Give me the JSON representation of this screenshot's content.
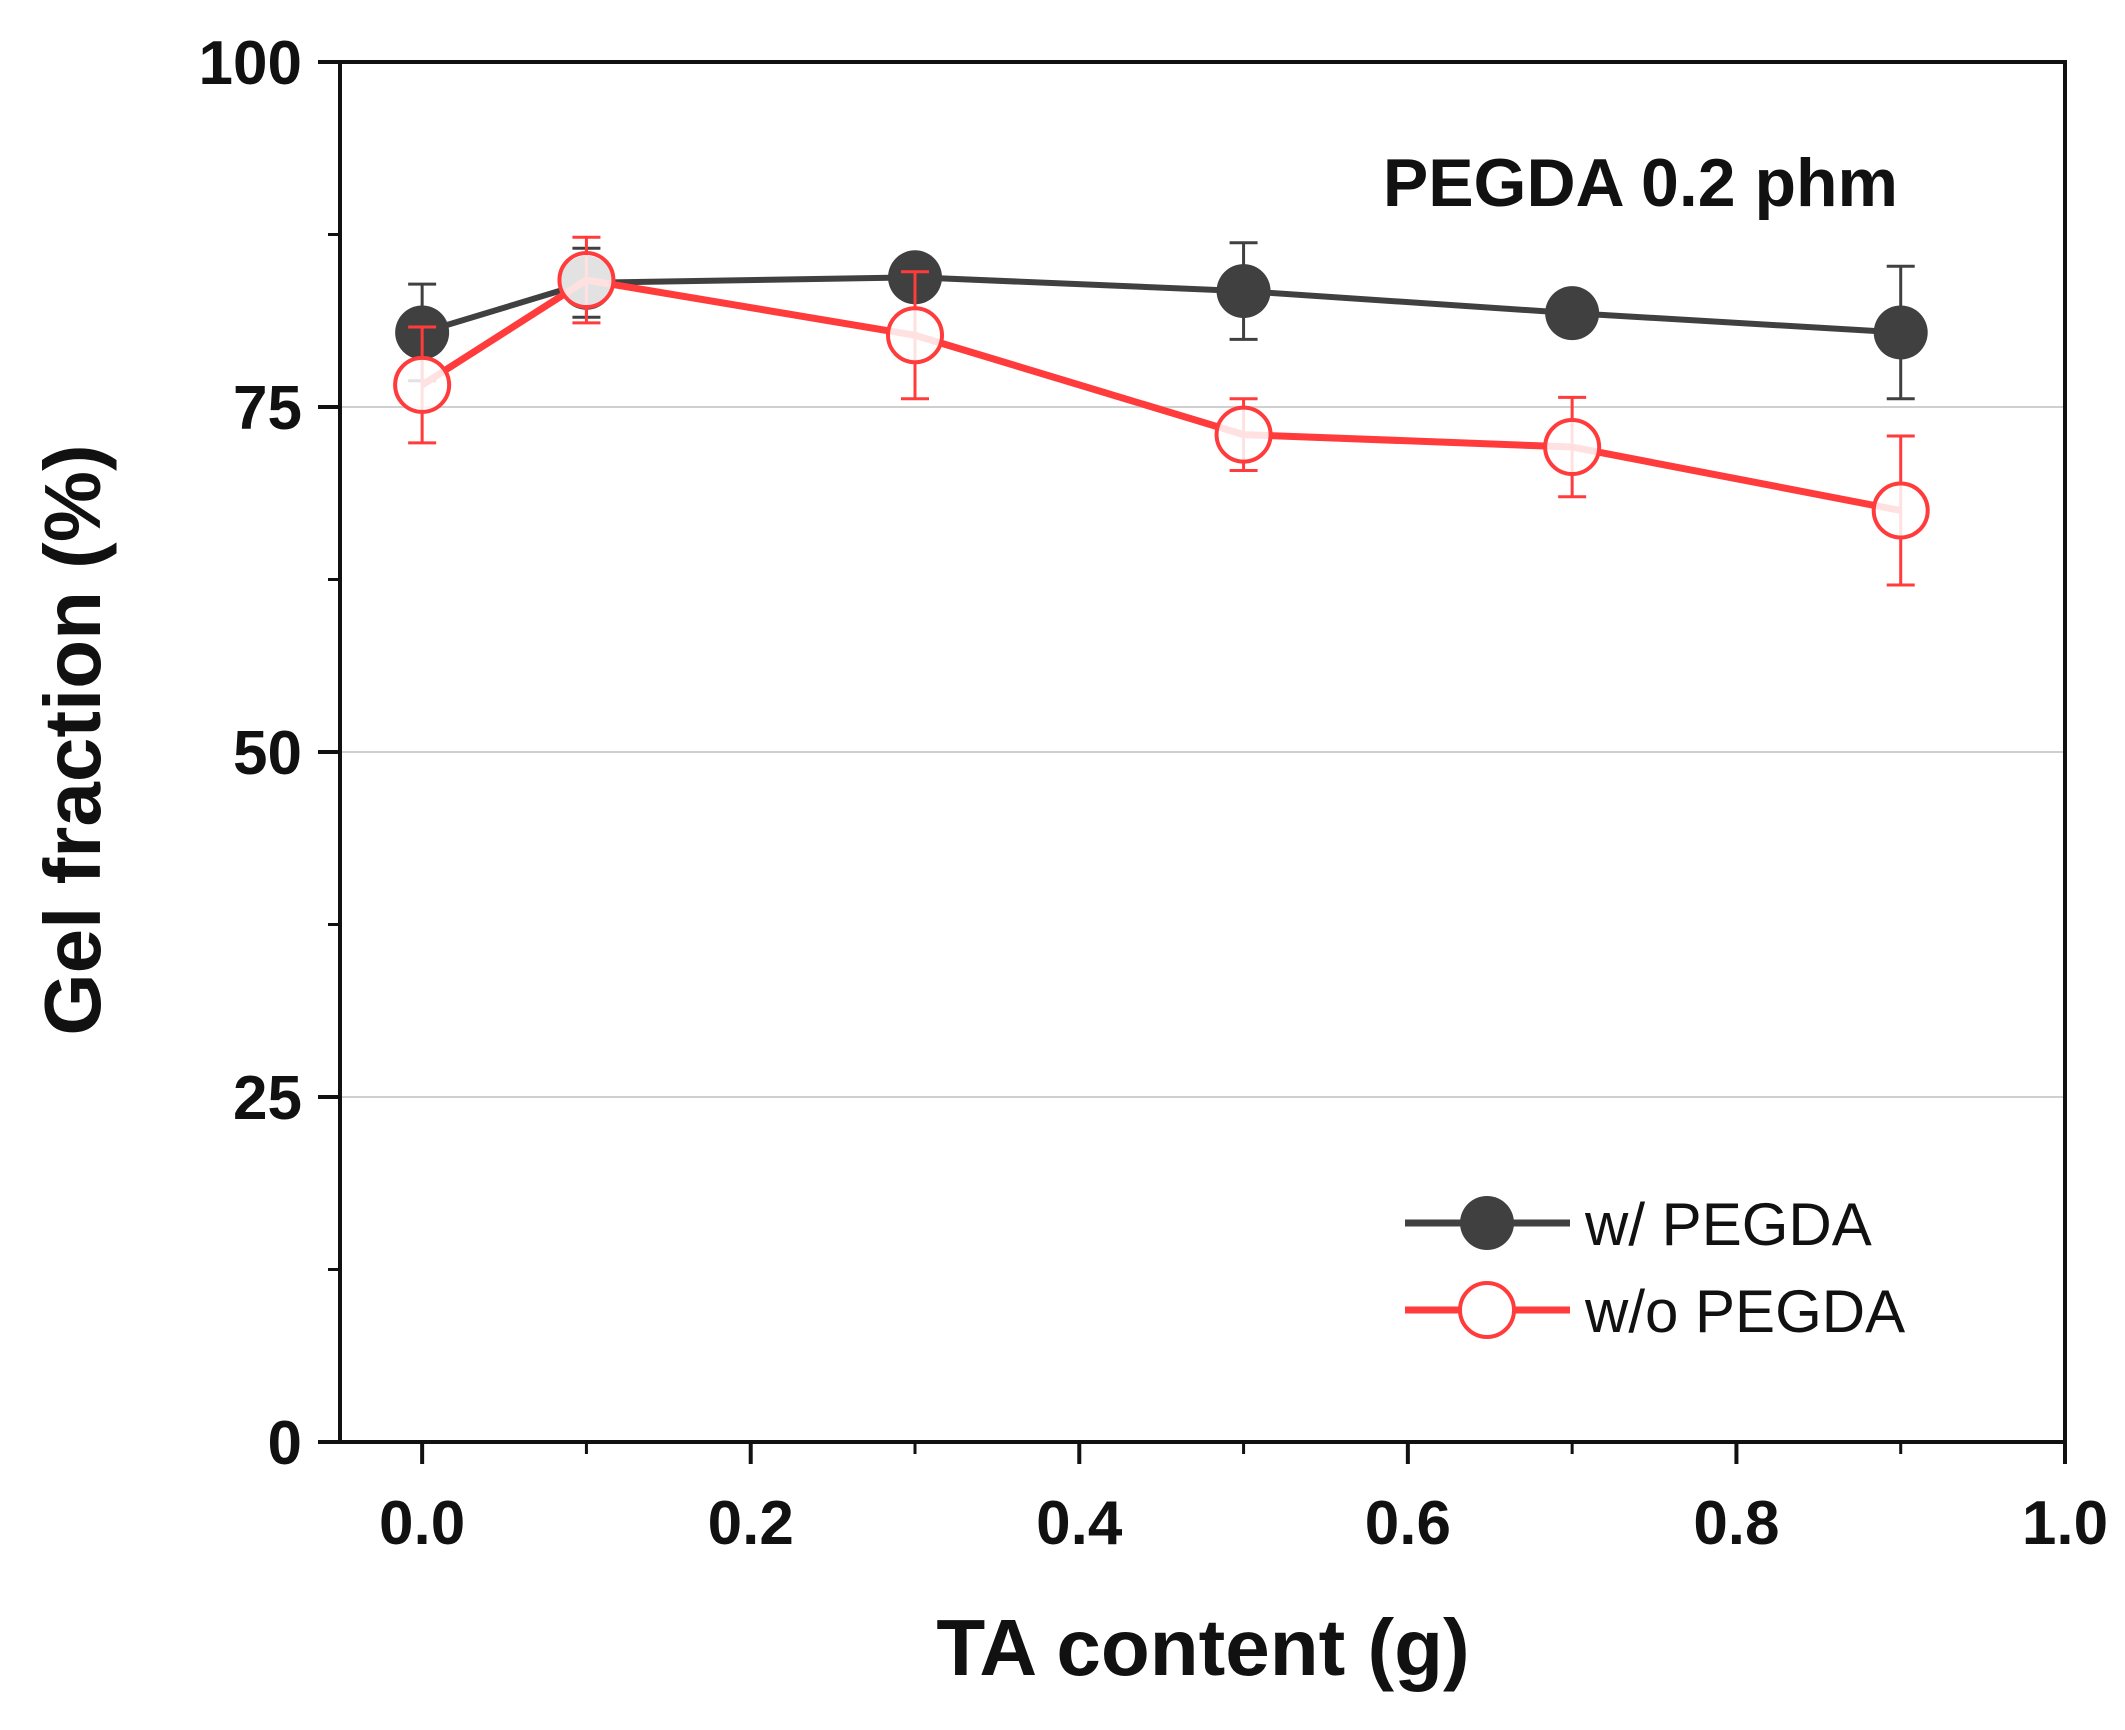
{
  "chart_data": {
    "type": "line",
    "annotation": "PEGDA 0.2 phm",
    "xlabel": "TA content (g)",
    "ylabel": "Gel fraction (%)",
    "xlim": [
      -0.05,
      1.0
    ],
    "ylim": [
      0,
      100
    ],
    "x_ticks": [
      "0.0",
      "0.2",
      "0.4",
      "0.6",
      "0.8",
      "1.0"
    ],
    "y_ticks": [
      "0",
      "25",
      "50",
      "75",
      "100"
    ],
    "gridlines_y": [
      25,
      50,
      75
    ],
    "legend_position": "bottom-right",
    "series": [
      {
        "name": "w/ PEGDA",
        "color": "#404040",
        "marker": "filled-circle",
        "x": [
          0.0,
          0.1,
          0.3,
          0.5,
          0.7,
          0.9
        ],
        "y": [
          80.4,
          84.0,
          84.4,
          83.4,
          81.8,
          80.4
        ],
        "err": [
          3.5,
          2.5,
          0.6,
          3.5,
          0.5,
          4.8
        ]
      },
      {
        "name": "w/o PEGDA",
        "color": "#ff3b3b",
        "marker": "open-circle",
        "x": [
          0.0,
          0.1,
          0.3,
          0.5,
          0.7,
          0.9
        ],
        "y": [
          76.6,
          84.2,
          80.2,
          73.0,
          72.1,
          67.5
        ],
        "err": [
          4.2,
          3.1,
          4.6,
          2.6,
          3.6,
          5.4
        ]
      }
    ]
  }
}
